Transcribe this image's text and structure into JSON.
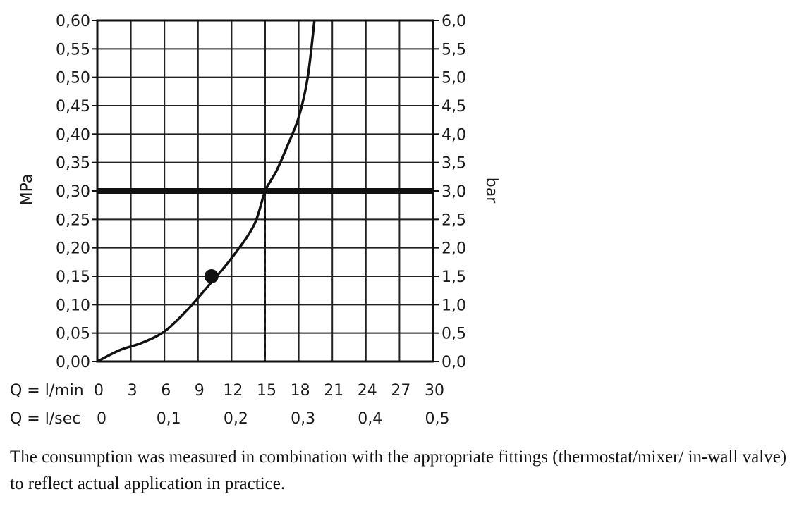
{
  "chart_data": {
    "type": "line",
    "y_left_label": "MPa",
    "y_right_label": "bar",
    "y_left_ticks": [
      "0,00",
      "0,05",
      "0,10",
      "0,15",
      "0,20",
      "0,25",
      "0,30",
      "0,35",
      "0,40",
      "0,45",
      "0,50",
      "0,55",
      "0,60"
    ],
    "y_right_ticks": [
      "0,0",
      "0,5",
      "1,0",
      "1,5",
      "2,0",
      "2,5",
      "3,0",
      "3,5",
      "4,0",
      "4,5",
      "5,0",
      "5,5",
      "6,0"
    ],
    "x_ticks_lmin": [
      "0",
      "3",
      "6",
      "9",
      "12",
      "15",
      "18",
      "21",
      "24",
      "27",
      "30"
    ],
    "x_ticks_lsec": [
      "0",
      "0,1",
      "0,2",
      "0,3",
      "0,4",
      "0,5"
    ],
    "x_label_lmin": "Q = l/min",
    "x_label_lsec": "Q = l/sec",
    "xlim": [
      0,
      30
    ],
    "ylim": [
      0,
      0.6
    ],
    "grid": true,
    "series": [
      {
        "x": [
          0,
          2,
          4,
          6,
          8,
          10,
          12,
          14,
          15,
          16,
          17,
          18,
          18.8,
          19.4
        ],
        "y": [
          0,
          0.02,
          0.033,
          0.053,
          0.09,
          0.135,
          0.182,
          0.24,
          0.3,
          0.335,
          0.38,
          0.43,
          0.5,
          0.6
        ]
      }
    ],
    "reference_line": {
      "y": 0.3
    },
    "marker_point": {
      "x": 10.2,
      "y": 0.15
    },
    "dashed_drop": {
      "x": 15,
      "y": 0.3
    }
  },
  "note": {
    "text": "The consumption was measured in combination with the appropriate fittings (thermostat/mixer/ in-wall valve) to reflect actual application in practice."
  }
}
